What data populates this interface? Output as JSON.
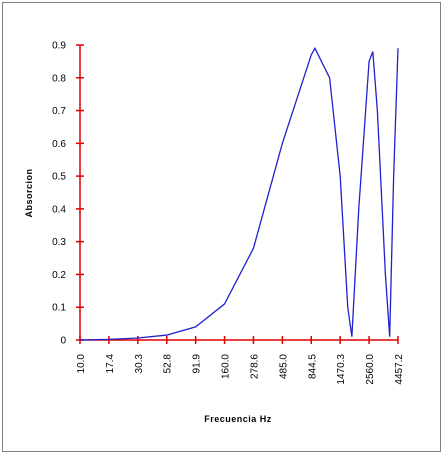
{
  "chart_data": {
    "type": "line",
    "x_label": "Frecuencia Hz",
    "y_label": "Absorcion",
    "log_x": true,
    "xlim": [
      10,
      4457.2
    ],
    "xticks": [
      {
        "value": 10,
        "label": "10.0"
      },
      {
        "value": 17.4,
        "label": "17.4"
      },
      {
        "value": 30.3,
        "label": "30.3"
      },
      {
        "value": 52.8,
        "label": "52.8"
      },
      {
        "value": 91.9,
        "label": "91.9"
      },
      {
        "value": 160,
        "label": "160.0"
      },
      {
        "value": 278.6,
        "label": "278.6"
      },
      {
        "value": 485,
        "label": "485.0"
      },
      {
        "value": 844.5,
        "label": "844.5"
      },
      {
        "value": 1470.3,
        "label": "1470.3"
      },
      {
        "value": 2560,
        "label": "2560.0"
      },
      {
        "value": 4457.2,
        "label": "4457.2"
      }
    ],
    "ylim": [
      0,
      0.9
    ],
    "yticks": [
      0,
      0.1,
      0.2,
      0.3,
      0.4,
      0.5,
      0.6,
      0.7,
      0.8,
      0.9
    ],
    "axis_color": "#e00000",
    "grid": false,
    "series": [
      {
        "color": "#2020d0",
        "x": [
          10,
          17.4,
          30.3,
          52.8,
          91.9,
          160,
          278.6,
          485,
          844.5,
          906,
          1200,
          1470.3,
          1700,
          1840,
          2100,
          2560,
          2750,
          3000,
          3500,
          3800,
          4100,
          4457.2
        ],
        "values": [
          0,
          0.002,
          0.006,
          0.015,
          0.04,
          0.11,
          0.28,
          0.6,
          0.87,
          0.89,
          0.8,
          0.5,
          0.1,
          0.01,
          0.4,
          0.85,
          0.88,
          0.7,
          0.2,
          0.01,
          0.5,
          0.89
        ]
      }
    ]
  }
}
